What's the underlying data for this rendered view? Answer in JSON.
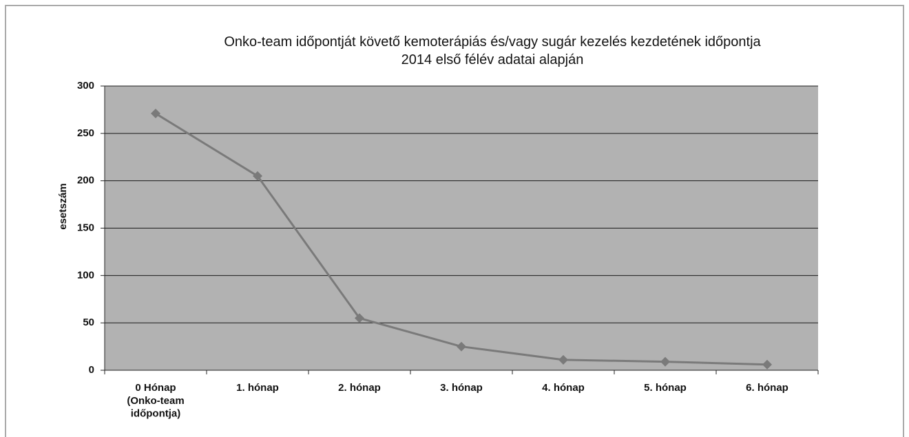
{
  "chart_data": {
    "type": "line",
    "title": "Onko-team időpontját követő kemoterápiás és/vagy sugár kezelés kezdetének időpontja",
    "subtitle": "2014 első félév adatai alapján",
    "y_label": "esetszám",
    "categories": [
      "0 Hónap\n(Onko-team\nidőpontja)",
      "1. hónap",
      "2. hónap",
      "3. hónap",
      "4. hónap",
      "5. hónap",
      "6. hónap"
    ],
    "series": [
      {
        "name": "esetszám",
        "color": "#7a7a7a",
        "values": [
          271,
          205,
          55,
          25,
          11,
          9,
          6
        ]
      }
    ],
    "ylim": [
      0,
      300
    ],
    "yticks": [
      0,
      50,
      100,
      150,
      200,
      250,
      300
    ],
    "grid": true
  }
}
